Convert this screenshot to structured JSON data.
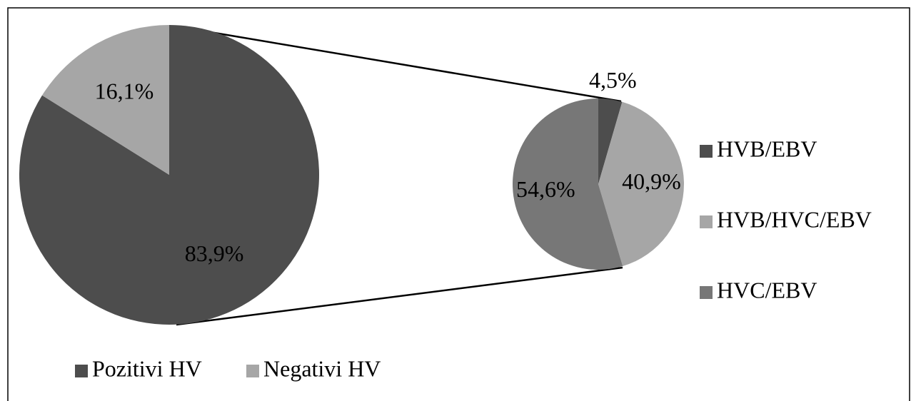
{
  "chart_data": [
    {
      "type": "pie",
      "categories": [
        "Pozitivi HV",
        "Negativi HV"
      ],
      "values": [
        83.9,
        16.1
      ],
      "value_labels": [
        "83,9%",
        "16,1%"
      ],
      "colors": [
        "#4d4d4d",
        "#a6a6a6"
      ],
      "legend": "bottom"
    },
    {
      "type": "pie",
      "categories": [
        "HVB/EBV",
        "HVB/HVC/EBV",
        "HVC/EBV"
      ],
      "values": [
        4.5,
        40.9,
        54.6
      ],
      "value_labels": [
        "4,5%",
        "40,9%",
        "54,6%"
      ],
      "colors": [
        "#4d4d4d",
        "#a6a6a6",
        "#777777"
      ],
      "legend": "right"
    }
  ]
}
